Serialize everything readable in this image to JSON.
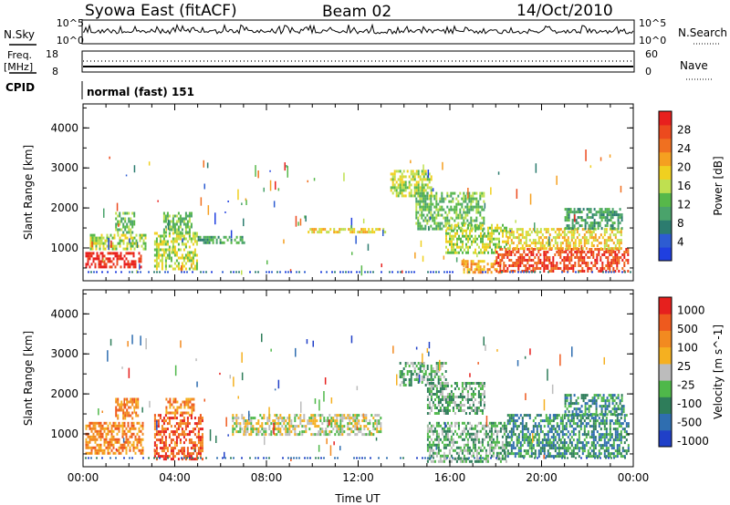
{
  "header": {
    "station": "Syowa East (fitACF)",
    "beam": "Beam 02",
    "date": "14/Oct/2010"
  },
  "noise_panel": {
    "left_label": "N.Sky",
    "right_label": "N.Search",
    "ticks_left": [
      "10^5",
      "10^0"
    ],
    "ticks_right": [
      "10^5",
      "10^0"
    ]
  },
  "freq_panel": {
    "left_label_1": "Freq.",
    "left_label_2": "[MHz]",
    "right_label": "Nave",
    "ticks_left": [
      "18",
      "8"
    ],
    "ticks_right": [
      "60",
      "0"
    ]
  },
  "cpid": {
    "label": "CPID",
    "value": "normal (fast) 151"
  },
  "chart_data": [
    {
      "type": "heatmap",
      "name": "power",
      "ylabel": "Slant Range [km]",
      "xlabel": "Time UT",
      "x_ticks": [
        "00:00",
        "04:00",
        "08:00",
        "12:00",
        "16:00",
        "20:00",
        "00:00"
      ],
      "xlim_hours": [
        0,
        24
      ],
      "y_ticks": [
        1000,
        2000,
        3000,
        4000
      ],
      "ylim_km": [
        180,
        4600
      ],
      "colorbar": {
        "label": "Power [dB]",
        "ticks": [
          "4",
          "8",
          "12",
          "16",
          "20",
          "24",
          "28"
        ],
        "colors": [
          "#1f3fe0",
          "#2d5cd2",
          "#2c7c6f",
          "#4aa36b",
          "#57b84a",
          "#bfe050",
          "#f0d020",
          "#f5a020",
          "#f07020",
          "#ec4a1e",
          "#e8201e"
        ]
      },
      "regions": [
        {
          "t": [
            0.1,
            2.5
          ],
          "r": [
            500,
            900
          ],
          "level": 10
        },
        {
          "t": [
            0.3,
            2.7
          ],
          "r": [
            1000,
            1350
          ],
          "level": 5
        },
        {
          "t": [
            1.4,
            2.2
          ],
          "r": [
            1400,
            1900
          ],
          "level": 4
        },
        {
          "t": [
            3.1,
            5.0
          ],
          "r": [
            500,
            1400
          ],
          "level": 5
        },
        {
          "t": [
            3.5,
            4.7
          ],
          "r": [
            1400,
            1900
          ],
          "level": 4
        },
        {
          "t": [
            5.0,
            7.0
          ],
          "r": [
            1100,
            1300
          ],
          "level": 3
        },
        {
          "t": [
            9.8,
            13.2
          ],
          "r": [
            1390,
            1500
          ],
          "level": 6
        },
        {
          "t": [
            13.4,
            15.2
          ],
          "r": [
            2300,
            2950
          ],
          "level": 5
        },
        {
          "t": [
            14.5,
            17.5
          ],
          "r": [
            1500,
            2400
          ],
          "level": 4
        },
        {
          "t": [
            15.8,
            18.5
          ],
          "r": [
            900,
            1600
          ],
          "level": 5
        },
        {
          "t": [
            16.5,
            18.2
          ],
          "r": [
            380,
            700
          ],
          "level": 7
        },
        {
          "t": [
            18.0,
            23.8
          ],
          "r": [
            450,
            1000
          ],
          "level": 9
        },
        {
          "t": [
            18.5,
            23.5
          ],
          "r": [
            1000,
            1500
          ],
          "level": 6
        },
        {
          "t": [
            21.0,
            23.5
          ],
          "r": [
            1500,
            2000
          ],
          "level": 3
        }
      ]
    },
    {
      "type": "heatmap",
      "name": "velocity",
      "ylabel": "Slant Range [km]",
      "xlabel": "Time UT",
      "x_ticks": [
        "00:00",
        "04:00",
        "08:00",
        "12:00",
        "16:00",
        "20:00",
        "00:00"
      ],
      "xlim_hours": [
        0,
        24
      ],
      "y_ticks": [
        1000,
        2000,
        3000,
        4000
      ],
      "ylim_km": [
        180,
        4600
      ],
      "colorbar": {
        "label": "Velocity [m s^-1]",
        "ticks": [
          "1000",
          "500",
          "100",
          "25",
          "-25",
          "-100",
          "-500",
          "-1000"
        ],
        "colors": [
          "#2040c8",
          "#2f6eb0",
          "#2e7d5a",
          "#4fb84a",
          "#bcbcbc",
          "#f5b020",
          "#f28a20",
          "#ee5a1e",
          "#e6201e"
        ]
      },
      "regions": [
        {
          "t": [
            0.1,
            2.6
          ],
          "r": [
            500,
            1300
          ],
          "level": 6
        },
        {
          "t": [
            1.4,
            2.4
          ],
          "r": [
            1400,
            1900
          ],
          "level": 6
        },
        {
          "t": [
            3.1,
            5.2
          ],
          "r": [
            400,
            1500
          ],
          "level": 7
        },
        {
          "t": [
            3.6,
            4.8
          ],
          "r": [
            1500,
            1900
          ],
          "level": 6
        },
        {
          "t": [
            6.5,
            13.0
          ],
          "r": [
            1000,
            1500
          ],
          "level": 4
        },
        {
          "t": [
            13.8,
            15.8
          ],
          "r": [
            2200,
            2800
          ],
          "level": 3
        },
        {
          "t": [
            15.0,
            17.5
          ],
          "r": [
            1500,
            2300
          ],
          "level": 3
        },
        {
          "t": [
            15.0,
            18.5
          ],
          "r": [
            300,
            1300
          ],
          "level": 3
        },
        {
          "t": [
            18.5,
            23.8
          ],
          "r": [
            450,
            1500
          ],
          "level": 2
        },
        {
          "t": [
            21.0,
            23.6
          ],
          "r": [
            1500,
            2000
          ],
          "level": 2
        }
      ]
    }
  ]
}
